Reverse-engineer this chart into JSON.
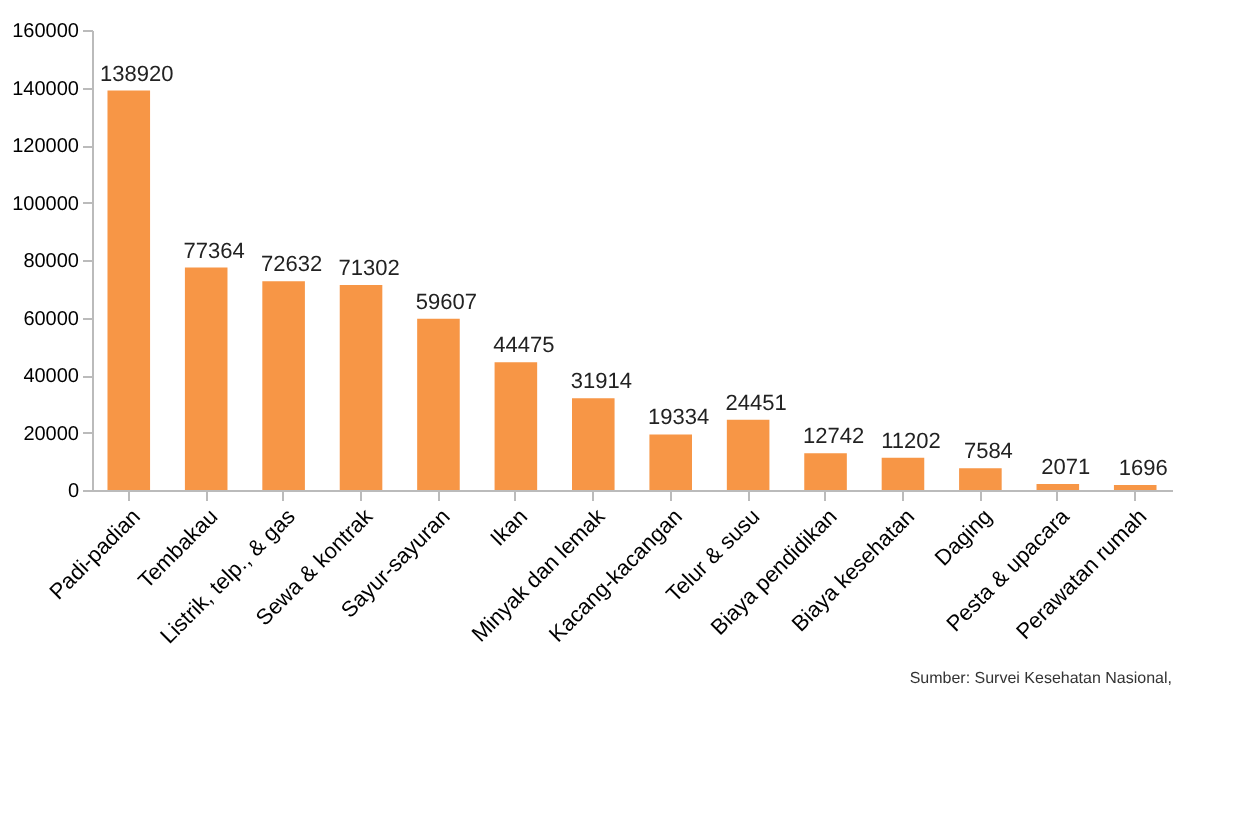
{
  "chart_data": {
    "type": "bar",
    "categories": [
      "Padi-padian",
      "Tembakau",
      "Listrik, telp., & gas",
      "Sewa & kontrak",
      "Sayur-sayuran",
      "Ikan",
      "Minyak dan lemak",
      "Kacang-kacangan",
      "Telur & susu",
      "Biaya pendidikan",
      "Biaya kesehatan",
      "Daging",
      "Pesta & upacara",
      "Perawatan rumah"
    ],
    "values": [
      138920,
      77364,
      72632,
      71302,
      59607,
      44475,
      31914,
      19334,
      24451,
      12742,
      11202,
      7584,
      2071,
      1696
    ],
    "color": "#f79646",
    "ylim": [
      0,
      160000
    ],
    "yticks": [
      0,
      20000,
      40000,
      60000,
      80000,
      100000,
      120000,
      140000,
      160000
    ],
    "grid": false,
    "data_labels": true,
    "annotations": [
      "Sumber: Survei Kesehatan Nasional,"
    ]
  }
}
